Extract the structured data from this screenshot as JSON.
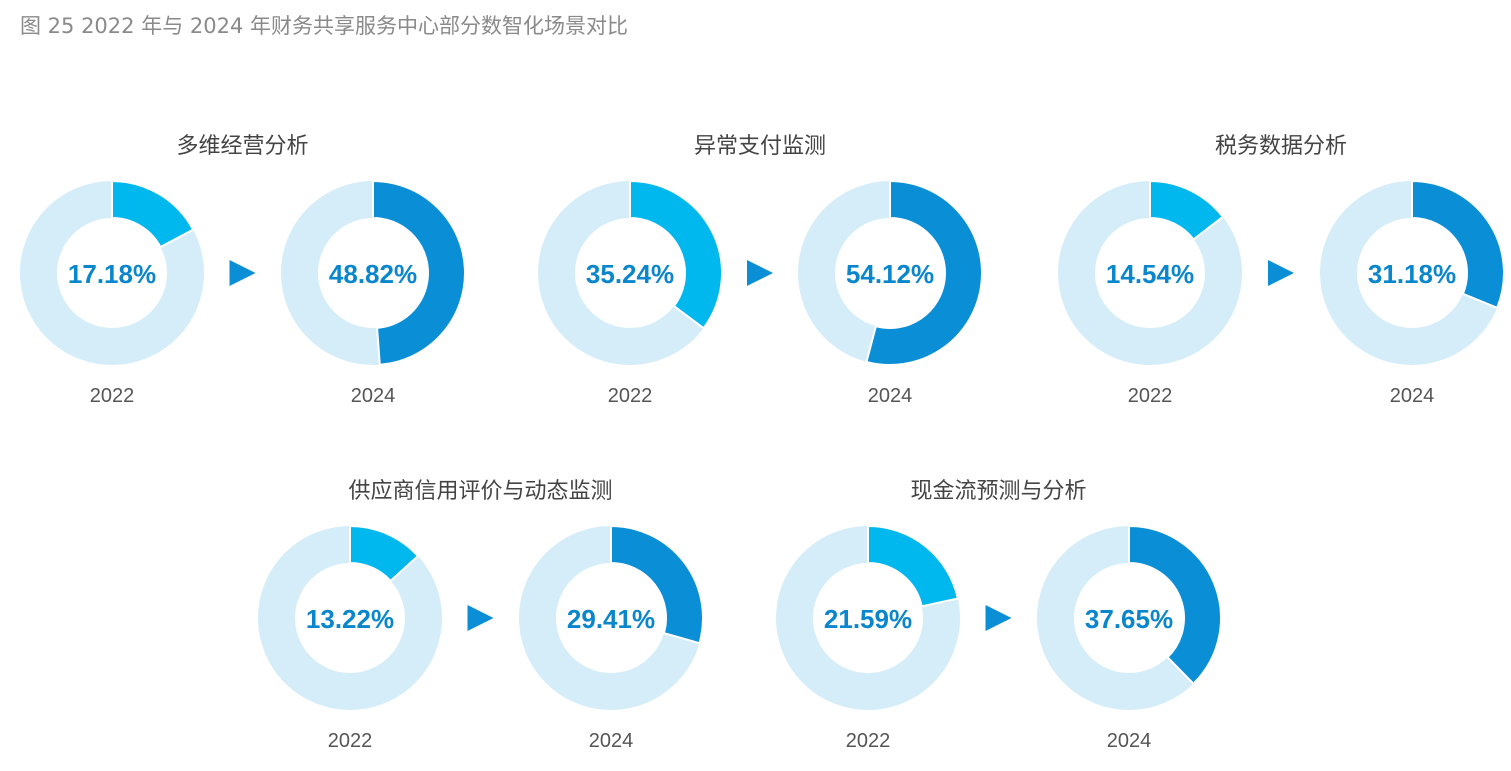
{
  "title": "图 25 2022 年与 2024 年财务共享服务中心部分数智化场景对比",
  "colors": {
    "y2022": "#00b8ee",
    "y2024": "#0a8fd6",
    "track": "#d4edf9",
    "label": "#0a86cc",
    "arrow": "#0a8fd6"
  },
  "chart_data": {
    "type": "pie",
    "variant": "donut-pairs",
    "unit": "%",
    "years": [
      "2022",
      "2024"
    ],
    "scenarios": [
      {
        "title": "多维经营分析",
        "values": [
          17.18,
          48.82
        ],
        "labels": [
          "17.18%",
          "48.82%"
        ]
      },
      {
        "title": "异常支付监测",
        "values": [
          35.24,
          54.12
        ],
        "labels": [
          "35.24%",
          "54.12%"
        ]
      },
      {
        "title": "税务数据分析",
        "values": [
          14.54,
          31.18
        ],
        "labels": [
          "14.54%",
          "31.18%"
        ]
      },
      {
        "title": "供应商信用评价与动态监测",
        "values": [
          13.22,
          29.41
        ],
        "labels": [
          "13.22%",
          "29.41%"
        ]
      },
      {
        "title": "现金流预测与分析",
        "values": [
          21.59,
          37.65
        ],
        "labels": [
          "21.59%",
          "37.65%"
        ]
      }
    ]
  }
}
